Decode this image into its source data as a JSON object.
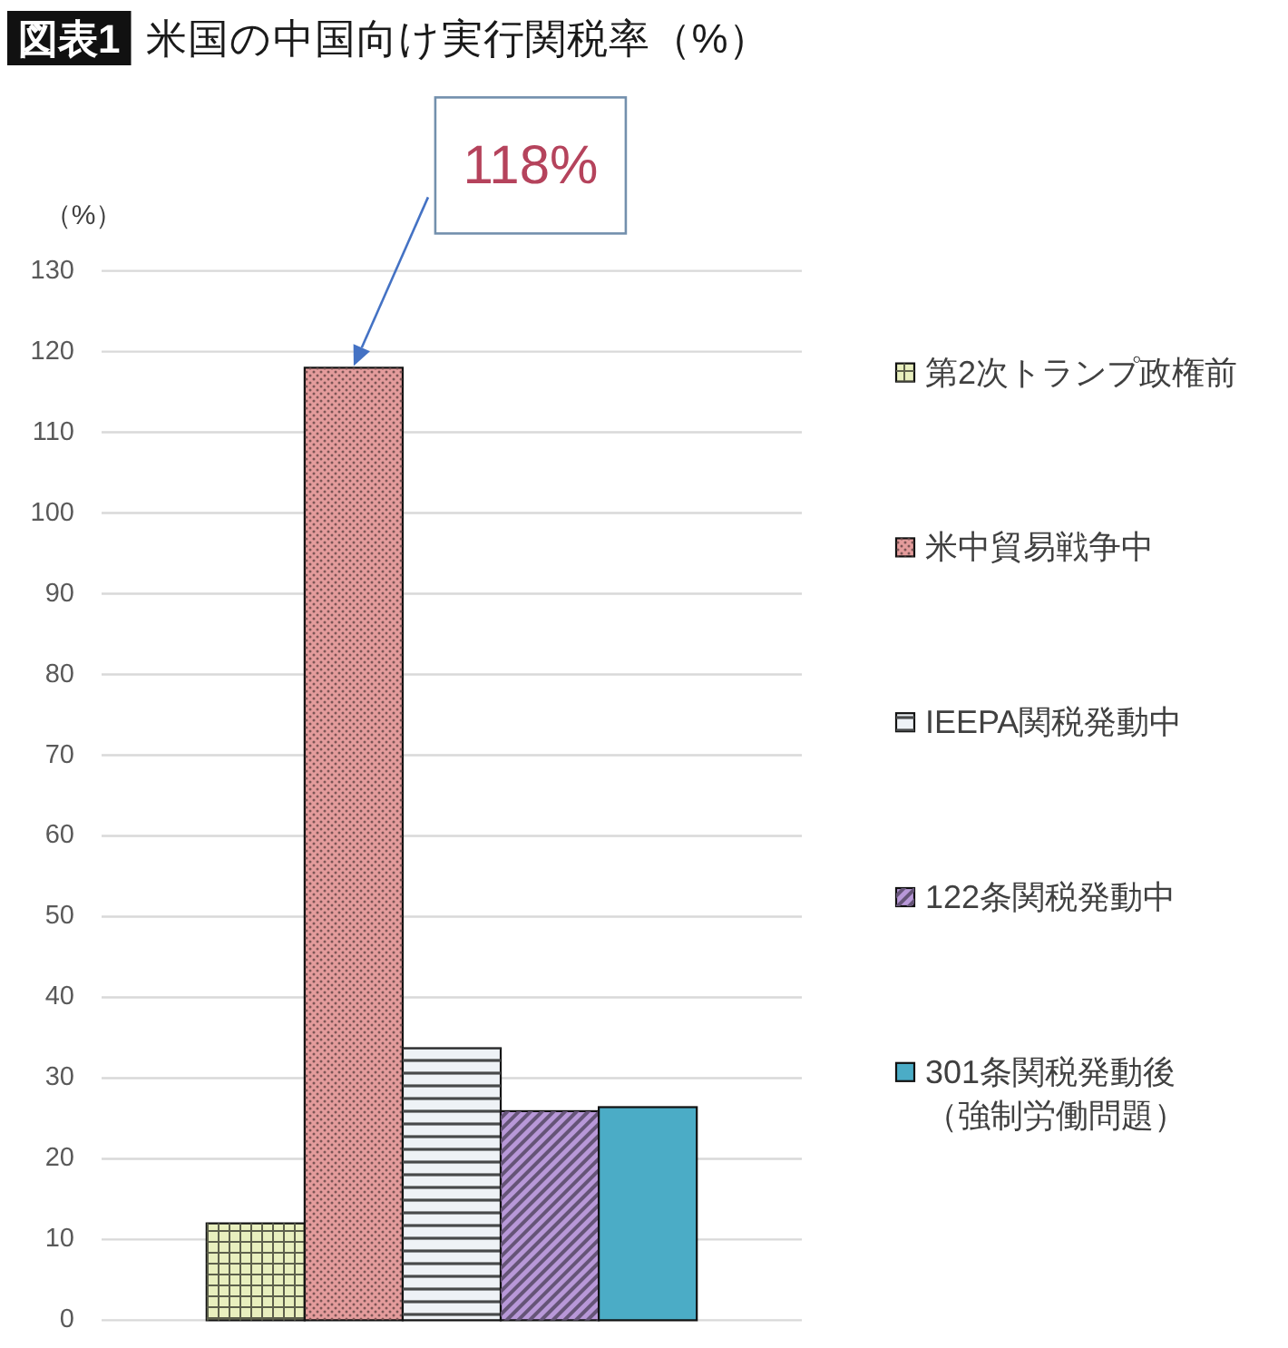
{
  "chart_data": {
    "type": "bar",
    "title": "図表1 米国の中国向け実行関税率（%）",
    "ylabel": "（%）",
    "categories": [
      null
    ],
    "series": [
      {
        "name": "第2次トランプ政権前",
        "color": "#e8efbe",
        "values": [
          12
        ]
      },
      {
        "name": "米中貿易戦争中",
        "color": "#e49c9c",
        "values": [
          118
        ]
      },
      {
        "name": "IEEPA関税発動中",
        "color": "#eef2f6",
        "values": [
          33.7
        ]
      },
      {
        "name": "122条関税発動中",
        "color": "#b898d8",
        "values": [
          25.9
        ]
      },
      {
        "name": "301条関税発動後（強制労働問題）",
        "color": "#4bacc6",
        "values": [
          26.4
        ]
      }
    ],
    "ylim": [
      0,
      130
    ],
    "yticks": [
      0,
      10,
      20,
      30,
      40,
      50,
      60,
      70,
      80,
      90,
      100,
      110,
      120,
      130
    ],
    "grid": "y",
    "legend": "right",
    "annotations": [
      "118%"
    ]
  }
}
